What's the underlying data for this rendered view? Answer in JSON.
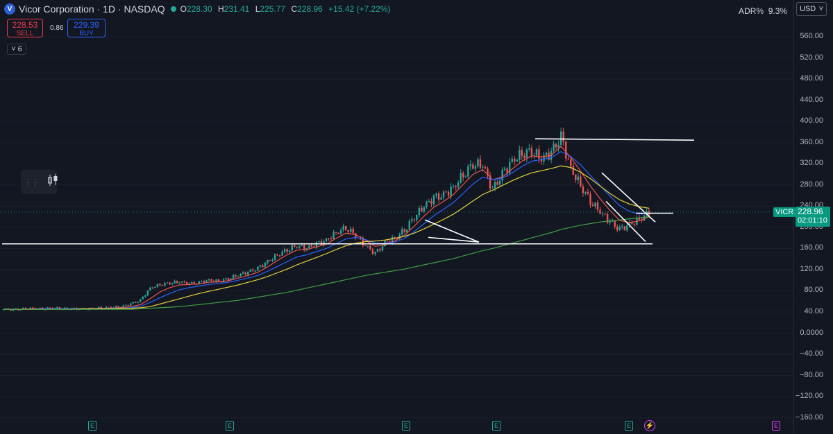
{
  "header": {
    "logo_letter": "V",
    "symbol_title": "Vicor Corporation · 1D · NASDAQ",
    "ohlc": {
      "o_label": "O",
      "o": "228.30",
      "h_label": "H",
      "h": "231.41",
      "l_label": "L",
      "l": "225.77",
      "c_label": "C",
      "c": "228.96",
      "change": "+15.42 (+7.22%)"
    }
  },
  "trade": {
    "sell_price": "228.53",
    "sell_label": "SELL",
    "spread": "0.86",
    "buy_price": "229.39",
    "buy_label": "BUY"
  },
  "indicators_toggle": {
    "chevron": "˅",
    "count": "6"
  },
  "adr": {
    "label": "ADR%",
    "value": "9.3%"
  },
  "currency": {
    "value": "USD",
    "chevron": "˅"
  },
  "price_axis": {
    "ticks": [
      "560.00",
      "520.00",
      "480.00",
      "440.00",
      "400.00",
      "360.00",
      "320.00",
      "280.00",
      "240.00",
      "200.00",
      "160.00",
      "120.00",
      "80.00",
      "40.00",
      "0.0000",
      "−40.00",
      "−80.00",
      "−120.00",
      "−160.00"
    ],
    "ticker_tag": "VICR",
    "last_price": "228.96",
    "countdown": "02:01:10"
  },
  "events": {
    "earnings_label": "E",
    "earnings_count": 5,
    "dividend_icon": "lightning-icon",
    "future_earnings_label": "E"
  },
  "colors": {
    "up": "#26a69a",
    "down": "#ef5350",
    "ema_fast": "#ef5350",
    "ema_mid": "#2962ff",
    "sma50": "#e6d33b",
    "sma200": "#43a047",
    "background": "#131722",
    "accent": "#089981"
  },
  "chart_data": {
    "type": "candlestick",
    "ylim": [
      -180,
      600
    ],
    "y_ticks": [
      560,
      520,
      480,
      440,
      400,
      360,
      320,
      280,
      240,
      200,
      160,
      120,
      80,
      40,
      0,
      -40,
      -80,
      -120,
      -160
    ],
    "last_close": 228.96,
    "horizontal_levels": [
      170,
      366,
      228
    ],
    "series": [
      {
        "name": "",
        "kind": "close",
        "values": [
          45,
          44,
          46,
          47,
          46,
          48,
          47,
          46,
          45,
          47,
          48,
          49,
          50,
          55,
          62,
          85,
          92,
          95,
          97,
          93,
          95,
          100,
          98,
          103,
          110,
          115,
          122,
          135,
          148,
          158,
          166,
          160,
          168,
          175,
          190,
          200,
          185,
          165,
          150,
          170,
          180,
          195,
          220,
          240,
          255,
          260,
          275,
          300,
          320,
          318,
          270,
          300,
          325,
          340,
          345,
          330,
          340,
          370,
          310,
          280,
          250,
          230,
          210,
          195,
          205,
          215,
          229
        ]
      },
      {
        "name": "",
        "kind": "ma_short",
        "values": [
          45,
          45,
          45,
          46,
          46,
          46,
          46,
          46,
          46,
          46,
          47,
          47,
          48,
          50,
          54,
          65,
          78,
          86,
          91,
          92,
          93,
          96,
          97,
          99,
          104,
          109,
          115,
          125,
          137,
          148,
          157,
          158,
          163,
          168,
          179,
          189,
          186,
          176,
          164,
          167,
          174,
          185,
          202,
          221,
          238,
          249,
          262,
          281,
          300,
          309,
          290,
          295,
          310,
          325,
          335,
          333,
          336,
          353,
          332,
          306,
          278,
          254,
          232,
          213,
          209,
          212,
          220
        ]
      },
      {
        "name": "",
        "kind": "ma_mid",
        "values": [
          45,
          45,
          45,
          45,
          46,
          46,
          46,
          46,
          46,
          46,
          46,
          47,
          47,
          48,
          51,
          58,
          67,
          75,
          82,
          86,
          89,
          92,
          94,
          96,
          100,
          104,
          109,
          117,
          126,
          135,
          144,
          148,
          154,
          160,
          169,
          178,
          181,
          177,
          170,
          170,
          172,
          179,
          192,
          207,
          222,
          234,
          247,
          264,
          282,
          295,
          290,
          293,
          303,
          315,
          325,
          328,
          332,
          343,
          334,
          318,
          298,
          279,
          259,
          241,
          230,
          225,
          226
        ]
      },
      {
        "name": "",
        "kind": "sma50",
        "values": [
          45,
          45,
          45,
          45,
          45,
          45,
          45,
          45,
          46,
          46,
          46,
          46,
          47,
          47,
          48,
          50,
          55,
          60,
          65,
          70,
          75,
          79,
          83,
          87,
          91,
          96,
          101,
          107,
          114,
          121,
          129,
          136,
          143,
          150,
          158,
          165,
          170,
          173,
          174,
          176,
          179,
          183,
          189,
          197,
          206,
          215,
          225,
          237,
          250,
          262,
          270,
          279,
          288,
          296,
          303,
          307,
          311,
          316,
          313,
          304,
          292,
          278,
          264,
          252,
          244,
          239,
          236
        ]
      },
      {
        "name": "",
        "kind": "sma200",
        "values": [
          45,
          45,
          45,
          45,
          45,
          45,
          45,
          45,
          45,
          45,
          45,
          45,
          45,
          45,
          46,
          47,
          48,
          49,
          50,
          52,
          54,
          56,
          58,
          60,
          62,
          65,
          68,
          71,
          74,
          77,
          81,
          85,
          89,
          93,
          97,
          101,
          105,
          109,
          112,
          115,
          118,
          121,
          125,
          129,
          133,
          137,
          141,
          146,
          151,
          156,
          160,
          165,
          170,
          175,
          180,
          185,
          190,
          196,
          200,
          204,
          207,
          210,
          212,
          214,
          216,
          218,
          220
        ]
      }
    ]
  }
}
